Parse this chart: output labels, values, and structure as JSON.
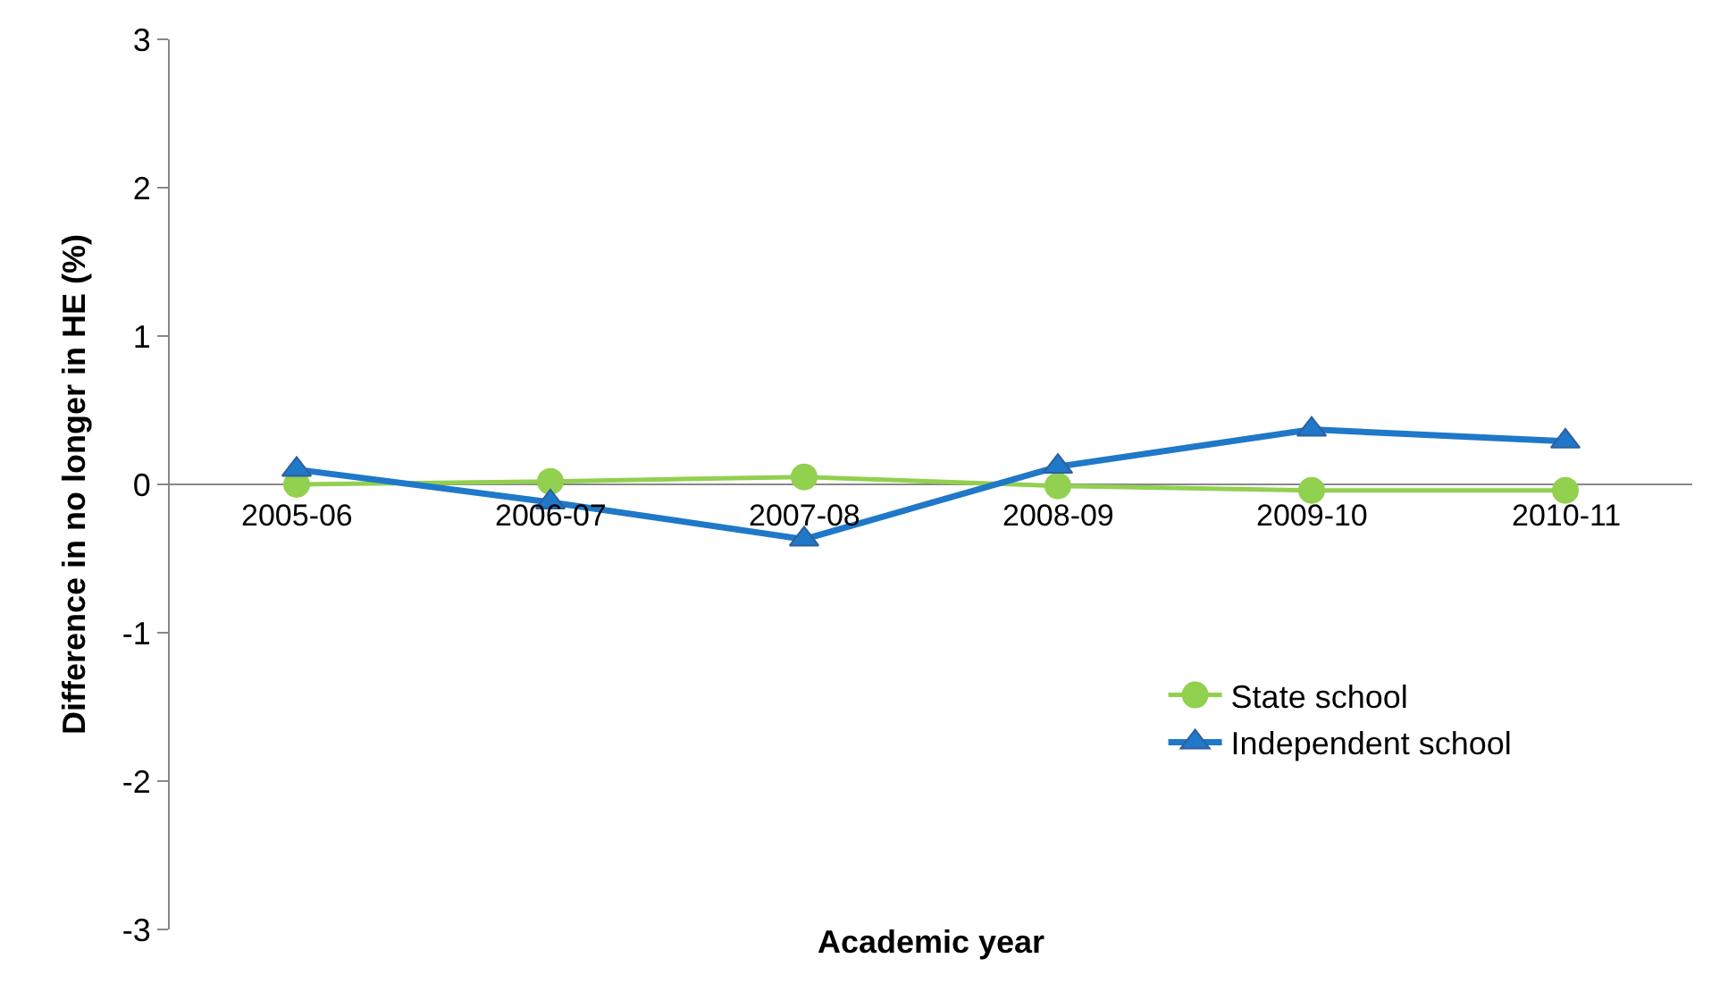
{
  "chart_data": {
    "type": "line",
    "xlabel": "Academic year",
    "ylabel": "Difference in no longer in HE (%)",
    "categories": [
      "2005-06",
      "2006-07",
      "2007-08",
      "2008-09",
      "2009-10",
      "2010-11"
    ],
    "series": [
      {
        "name": "State school",
        "color": "#92d050",
        "marker": "circle",
        "values": [
          0.0,
          0.02,
          0.05,
          -0.01,
          -0.04,
          -0.04
        ]
      },
      {
        "name": "Independent school",
        "color": "#1f78c8",
        "marker": "triangle",
        "values": [
          0.1,
          -0.12,
          -0.37,
          0.12,
          0.37,
          0.29
        ]
      }
    ],
    "ylim": [
      -3,
      3
    ],
    "yticks": [
      -3,
      -2,
      -1,
      0,
      1,
      2,
      3
    ],
    "legend": "bottom right"
  }
}
